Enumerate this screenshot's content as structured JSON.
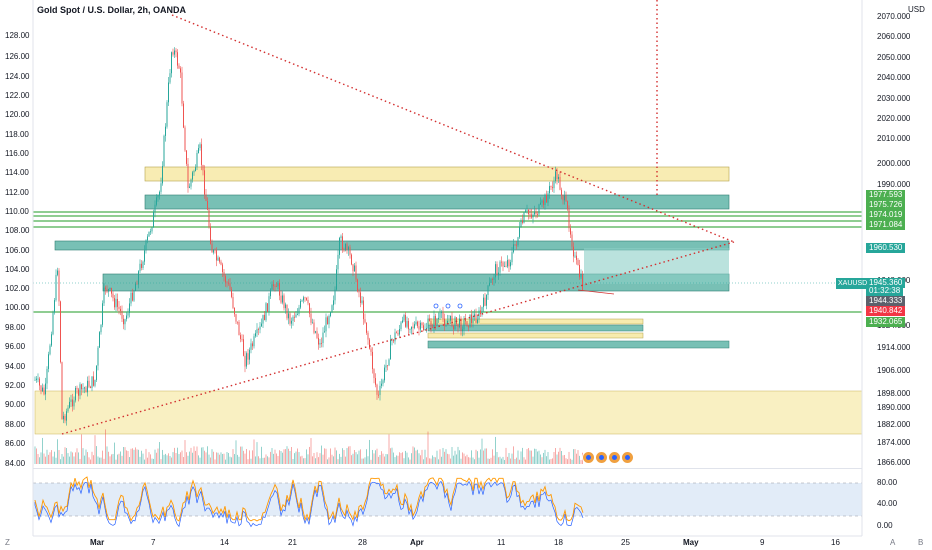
{
  "header": {
    "title": "Gold Spot / U.S. Dollar, 2h, OANDA",
    "currency": "USD"
  },
  "left_axis": {
    "ticks": [
      "128.00",
      "126.00",
      "124.00",
      "122.00",
      "120.00",
      "118.00",
      "116.00",
      "114.00",
      "112.00",
      "110.00",
      "108.00",
      "106.00",
      "104.00",
      "102.00",
      "100.00",
      "98.00",
      "96.00",
      "94.00",
      "92.00",
      "90.00",
      "88.00",
      "86.00",
      "84.00"
    ]
  },
  "right_axis": {
    "ticks": [
      "2070.000",
      "2060.000",
      "2050.000",
      "2040.000",
      "2030.000",
      "2020.000",
      "2010.000",
      "2000.000",
      "1990.000",
      "1948.000",
      "1924.000",
      "1914.000",
      "1906.000",
      "1898.000",
      "1890.000",
      "1882.000",
      "1874.000",
      "1866.000"
    ],
    "oscillator_ticks": [
      "80.00",
      "40.00",
      "0.00"
    ]
  },
  "price_tags": [
    {
      "text": "1977.593",
      "color": "#4caf50"
    },
    {
      "text": "1975.726",
      "color": "#4caf50"
    },
    {
      "text": "1974.019",
      "color": "#4caf50"
    },
    {
      "text": "1971.084",
      "color": "#4caf50"
    },
    {
      "text": "1960.530",
      "color": "#26a69a"
    },
    {
      "text": "1945.360",
      "color": "#26a69a"
    },
    {
      "text": "01:32:38",
      "color": "#26a69a"
    },
    {
      "text": "1944.333",
      "color": "#5d606b"
    },
    {
      "text": "1940.842",
      "color": "#f23645"
    },
    {
      "text": "1932.065",
      "color": "#4caf50"
    }
  ],
  "symbol_tag": "XAUUSD",
  "time_axis": {
    "labels": [
      {
        "text": "Mar",
        "bold": true
      },
      {
        "text": "7",
        "bold": false
      },
      {
        "text": "14",
        "bold": false
      },
      {
        "text": "21",
        "bold": false
      },
      {
        "text": "28",
        "bold": false
      },
      {
        "text": "Apr",
        "bold": true
      },
      {
        "text": "11",
        "bold": false
      },
      {
        "text": "18",
        "bold": false
      },
      {
        "text": "25",
        "bold": false
      },
      {
        "text": "May",
        "bold": true
      },
      {
        "text": "9",
        "bold": false
      },
      {
        "text": "16",
        "bold": false
      }
    ]
  },
  "corners": {
    "left": "Z",
    "right_a": "A",
    "right_b": "B"
  },
  "colors": {
    "up": "#26a69a",
    "down": "#ef5350",
    "yellow_zone": "#f5e69a",
    "teal_zone": "#4bab9c",
    "green_line": "#4caf50",
    "trend": "#d32f2f",
    "osc_band": "#d6e4f5",
    "osc_line": "#ff9800"
  },
  "icons": [
    "flag-us-icon",
    "flag-us-icon",
    "flag-us-icon",
    "flag-us-icon"
  ]
}
